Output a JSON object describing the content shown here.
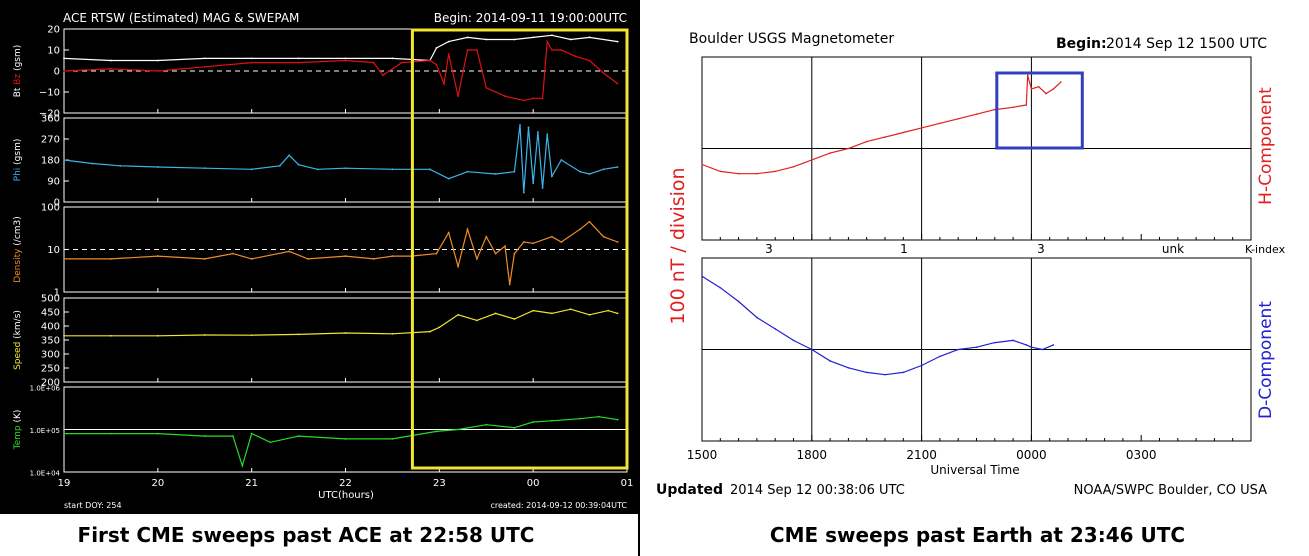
{
  "captions": {
    "left": "First CME sweeps past ACE at 22:58 UTC",
    "right": "CME sweeps past Earth at 23:46 UTC"
  },
  "colors": {
    "bt": "#ffffff",
    "bz": "#e01010",
    "phi": "#3cb4e6",
    "density": "#f08c28",
    "speed": "#f0e632",
    "temp": "#28dc28",
    "highlight_yellow": "#f0e632",
    "h_component": "#e02020",
    "d_component": "#2020d0",
    "highlight_blue": "#3040c0"
  },
  "chart_data": [
    {
      "type": "line",
      "title": "ACE RTSW (Estimated) MAG & SWEPAM",
      "begin": "Begin: 2014-09-11 19:00:00UTC",
      "xlabel": "UTC(hours)",
      "xlim": [
        19,
        25
      ],
      "x_ticks": [
        "19",
        "20",
        "21",
        "22",
        "23",
        "00",
        "01"
      ],
      "footer_left": "start DOY: 254",
      "footer_right": "created: 2014-09-12 00:39:04UTC",
      "highlight_window": [
        22.5,
        25.0
      ],
      "panels": [
        {
          "id": "mag",
          "ylabel_parts": [
            "Bt",
            "Bz",
            "(gsm)"
          ],
          "ylim": [
            -20,
            20
          ],
          "ticks": [
            "20",
            "10",
            "0",
            "−10",
            "−20"
          ],
          "tick_values": [
            20,
            10,
            0,
            -10,
            -20
          ],
          "dashed_ref": 0,
          "series": [
            {
              "key": "bt",
              "x": [
                19.0,
                19.5,
                20.0,
                20.5,
                21.0,
                21.5,
                22.0,
                22.5,
                22.9,
                22.97,
                23.1,
                23.3,
                23.5,
                23.8,
                24.0,
                24.2,
                24.4,
                24.6,
                24.9
              ],
              "y": [
                6,
                5,
                5,
                6,
                6,
                6,
                6,
                6,
                5,
                11,
                14,
                16,
                15,
                15,
                16,
                17,
                15,
                16,
                14
              ]
            },
            {
              "key": "bz",
              "x": [
                19.0,
                19.5,
                20.0,
                20.5,
                21.0,
                21.5,
                22.0,
                22.3,
                22.4,
                22.6,
                22.9,
                22.97,
                23.05,
                23.1,
                23.2,
                23.3,
                23.4,
                23.5,
                23.7,
                23.9,
                24.0,
                24.1,
                24.15,
                24.2,
                24.3,
                24.45,
                24.6,
                24.75,
                24.9
              ],
              "y": [
                0,
                1,
                0,
                2,
                4,
                4,
                5,
                4,
                -2,
                4,
                5,
                3,
                -6,
                8,
                -12,
                10,
                10,
                -8,
                -12,
                -14,
                -13,
                -13,
                14,
                10,
                10,
                7,
                5,
                -1,
                -6
              ]
            }
          ]
        },
        {
          "id": "phi",
          "ylabel_parts": [
            "Phi",
            "(gsm)"
          ],
          "ylim": [
            0,
            360
          ],
          "ticks": [
            "360",
            "270",
            "180",
            "90",
            "0"
          ],
          "tick_values": [
            360,
            270,
            180,
            90,
            0
          ],
          "series": [
            {
              "key": "phi",
              "x": [
                19.0,
                19.3,
                19.6,
                20.0,
                20.5,
                21.0,
                21.3,
                21.4,
                21.5,
                21.7,
                22.0,
                22.5,
                22.9,
                23.1,
                23.3,
                23.6,
                23.8,
                23.86,
                23.9,
                23.95,
                24.0,
                24.05,
                24.1,
                24.15,
                24.2,
                24.3,
                24.5,
                24.6,
                24.75,
                24.9
              ],
              "y": [
                180,
                165,
                155,
                150,
                145,
                140,
                155,
                200,
                160,
                140,
                145,
                140,
                140,
                100,
                130,
                120,
                130,
                330,
                40,
                320,
                80,
                300,
                60,
                290,
                110,
                180,
                130,
                120,
                140,
                150
              ]
            }
          ]
        },
        {
          "id": "density",
          "ylabel_parts": [
            "Density",
            "(/cm3)"
          ],
          "ylim": [
            1,
            100
          ],
          "log": true,
          "ticks": [
            "100",
            "10",
            "1"
          ],
          "tick_values": [
            100,
            10,
            1
          ],
          "dashed_ref": 10,
          "series": [
            {
              "key": "density",
              "x": [
                19.0,
                19.5,
                20.0,
                20.5,
                20.8,
                21.0,
                21.4,
                21.6,
                22.0,
                22.3,
                22.5,
                22.7,
                22.97,
                23.1,
                23.2,
                23.3,
                23.4,
                23.5,
                23.6,
                23.7,
                23.75,
                23.8,
                23.9,
                24.0,
                24.2,
                24.3,
                24.5,
                24.6,
                24.75,
                24.9
              ],
              "y": [
                6,
                6,
                7,
                6,
                8,
                6,
                9,
                6,
                7,
                6,
                7,
                7,
                8,
                25,
                4,
                30,
                6,
                20,
                8,
                12,
                1.5,
                8,
                15,
                14,
                20,
                15,
                30,
                45,
                20,
                15
              ]
            }
          ]
        },
        {
          "id": "speed",
          "ylabel_parts": [
            "Speed",
            "(km/s)"
          ],
          "ylim": [
            200,
            500
          ],
          "ticks": [
            "500",
            "450",
            "400",
            "350",
            "300",
            "250",
            "200"
          ],
          "tick_values": [
            500,
            450,
            400,
            350,
            300,
            250,
            200
          ],
          "series": [
            {
              "key": "speed",
              "x": [
                19.0,
                19.5,
                20.0,
                20.5,
                21.0,
                21.5,
                22.0,
                22.5,
                22.9,
                23.0,
                23.2,
                23.4,
                23.6,
                23.8,
                24.0,
                24.2,
                24.4,
                24.6,
                24.8,
                24.9
              ],
              "y": [
                365,
                365,
                365,
                368,
                367,
                370,
                375,
                372,
                380,
                395,
                440,
                420,
                445,
                425,
                455,
                445,
                460,
                440,
                455,
                445
              ]
            }
          ]
        },
        {
          "id": "temp",
          "ylabel_parts": [
            "Temp",
            "(K)"
          ],
          "ylim": [
            10000,
            1000000
          ],
          "log": true,
          "ticks": [
            "1.0E+06",
            "1.0E+05",
            "1.0E+04"
          ],
          "tick_values": [
            1000000,
            100000,
            10000
          ],
          "dashed_ref": 100000,
          "series": [
            {
              "key": "temp",
              "x": [
                19.0,
                19.5,
                20.0,
                20.5,
                20.8,
                20.9,
                21.0,
                21.2,
                21.5,
                22.0,
                22.5,
                22.97,
                23.2,
                23.5,
                23.8,
                24.0,
                24.2,
                24.5,
                24.7,
                24.9
              ],
              "y": [
                80000,
                80000,
                80000,
                70000,
                70000,
                14000,
                80000,
                50000,
                70000,
                60000,
                60000,
                90000,
                100000,
                130000,
                110000,
                150000,
                160000,
                180000,
                200000,
                170000
              ]
            }
          ]
        }
      ]
    },
    {
      "type": "line",
      "title": "Boulder USGS Magnetometer",
      "begin_label": "Begin:",
      "begin_value": "2014 Sep 12 1500 UTC",
      "xlabel": "Universal Time",
      "xlim": [
        15,
        30
      ],
      "x_ticks": [
        "1500",
        "1800",
        "2100",
        "0000",
        "0300"
      ],
      "y_scale_label": "100 nT / division",
      "updated_label": "Updated",
      "updated_value": "2014 Sep 12 00:38:06 UTC",
      "credit": "NOAA/SWPC Boulder, CO USA",
      "k_index_label": "K-index",
      "k_index": [
        "3",
        "1",
        "3",
        "unk"
      ],
      "highlight_window": [
        23.0,
        25.5
      ],
      "panels": [
        {
          "id": "h",
          "ylabel": "H-Component",
          "series": [
            {
              "key": "h_component",
              "x": [
                15.0,
                15.5,
                16.0,
                16.5,
                17.0,
                17.5,
                18.0,
                18.5,
                19.0,
                19.5,
                20.0,
                20.5,
                21.0,
                21.5,
                22.0,
                22.5,
                23.0,
                23.5,
                23.86,
                23.9,
                24.0,
                24.2,
                24.4,
                24.6,
                24.8
              ],
              "y": [
                -0.35,
                -0.5,
                -0.55,
                -0.55,
                -0.5,
                -0.4,
                -0.25,
                -0.1,
                0.0,
                0.15,
                0.25,
                0.35,
                0.45,
                0.55,
                0.65,
                0.75,
                0.85,
                0.9,
                0.95,
                1.6,
                1.3,
                1.35,
                1.2,
                1.3,
                1.45
              ]
            }
          ]
        },
        {
          "id": "d",
          "ylabel": "D-Component",
          "series": [
            {
              "key": "d_component",
              "x": [
                15.0,
                15.5,
                16.0,
                16.5,
                17.0,
                17.5,
                18.0,
                18.5,
                19.0,
                19.5,
                20.0,
                20.5,
                21.0,
                21.5,
                22.0,
                22.5,
                23.0,
                23.5,
                23.86,
                24.0,
                24.3,
                24.6
              ],
              "y": [
                1.6,
                1.35,
                1.05,
                0.7,
                0.45,
                0.2,
                0.0,
                -0.25,
                -0.4,
                -0.5,
                -0.55,
                -0.5,
                -0.35,
                -0.15,
                0.0,
                0.05,
                0.15,
                0.2,
                0.1,
                0.05,
                0.0,
                0.1
              ]
            }
          ]
        }
      ]
    }
  ]
}
